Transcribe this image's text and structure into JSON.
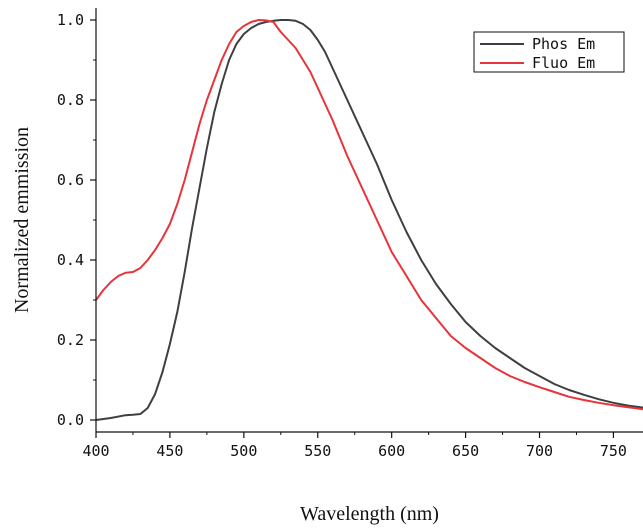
{
  "chart_data": {
    "type": "line",
    "title": "",
    "xlabel": "Wavelength (nm)",
    "ylabel": "Normalized emmission",
    "xlim": [
      400,
      770
    ],
    "ylim": [
      -0.03,
      1.03
    ],
    "xticks": [
      400,
      450,
      500,
      550,
      600,
      650,
      700,
      750
    ],
    "xtick_labels": [
      "400",
      "450",
      "500",
      "550",
      "600",
      "650",
      "700",
      "750"
    ],
    "yticks": [
      0.0,
      0.2,
      0.4,
      0.6,
      0.8,
      1.0
    ],
    "ytick_labels": [
      "0.0",
      "0.2",
      "0.4",
      "0.6",
      "0.8",
      "1.0"
    ],
    "grid": false,
    "legend_position": "top-right",
    "series": [
      {
        "name": "Phos Em",
        "color": "#3f3f3f",
        "x": [
          400,
          410,
          420,
          425,
          430,
          435,
          440,
          445,
          450,
          455,
          460,
          465,
          470,
          475,
          480,
          485,
          490,
          495,
          500,
          505,
          510,
          515,
          520,
          525,
          530,
          535,
          540,
          545,
          550,
          555,
          560,
          570,
          580,
          590,
          600,
          610,
          620,
          630,
          640,
          650,
          660,
          670,
          680,
          690,
          700,
          710,
          720,
          730,
          740,
          750,
          760,
          770
        ],
        "y": [
          0.0,
          0.005,
          0.012,
          0.013,
          0.015,
          0.03,
          0.065,
          0.12,
          0.19,
          0.27,
          0.37,
          0.48,
          0.58,
          0.68,
          0.77,
          0.84,
          0.9,
          0.94,
          0.965,
          0.98,
          0.99,
          0.995,
          0.998,
          1.0,
          1.0,
          0.998,
          0.99,
          0.975,
          0.95,
          0.92,
          0.88,
          0.8,
          0.72,
          0.64,
          0.55,
          0.47,
          0.4,
          0.34,
          0.29,
          0.245,
          0.21,
          0.18,
          0.155,
          0.13,
          0.11,
          0.09,
          0.075,
          0.063,
          0.052,
          0.043,
          0.036,
          0.031
        ]
      },
      {
        "name": "Fluo Em",
        "color": "#e8333a",
        "x": [
          400,
          405,
          410,
          415,
          420,
          425,
          430,
          435,
          440,
          445,
          450,
          455,
          460,
          465,
          470,
          475,
          480,
          485,
          490,
          495,
          500,
          505,
          510,
          515,
          520,
          525,
          530,
          535,
          540,
          545,
          550,
          560,
          570,
          580,
          590,
          600,
          610,
          620,
          630,
          640,
          650,
          660,
          670,
          680,
          690,
          700,
          710,
          720,
          730,
          740,
          750,
          760,
          770
        ],
        "y": [
          0.3,
          0.325,
          0.345,
          0.36,
          0.368,
          0.37,
          0.38,
          0.4,
          0.425,
          0.455,
          0.49,
          0.54,
          0.6,
          0.67,
          0.74,
          0.8,
          0.85,
          0.9,
          0.94,
          0.97,
          0.985,
          0.995,
          1.0,
          0.999,
          0.995,
          0.97,
          0.95,
          0.93,
          0.9,
          0.87,
          0.83,
          0.75,
          0.66,
          0.58,
          0.5,
          0.42,
          0.36,
          0.3,
          0.255,
          0.21,
          0.18,
          0.155,
          0.13,
          0.11,
          0.095,
          0.082,
          0.07,
          0.058,
          0.05,
          0.043,
          0.037,
          0.032,
          0.027
        ]
      }
    ]
  }
}
